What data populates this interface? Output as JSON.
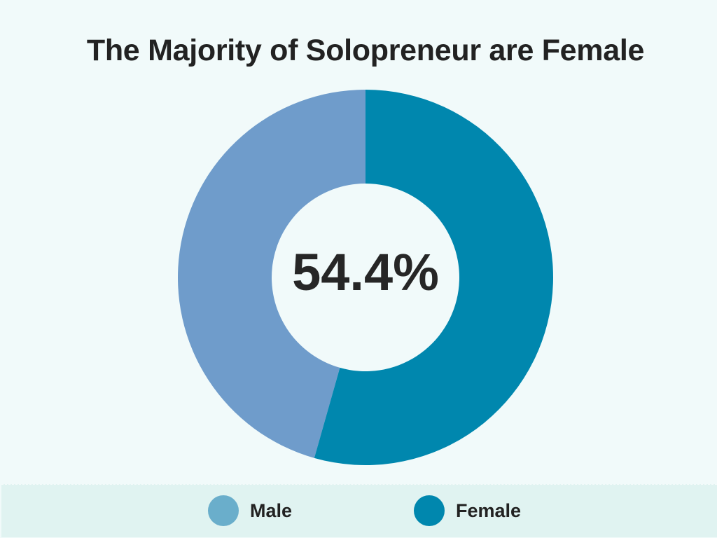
{
  "title": "The Majority of Solopreneur are Female",
  "center_label": "54.4%",
  "legend": [
    {
      "label": "Male",
      "color": "#6aaecb"
    },
    {
      "label": "Female",
      "color": "#0087ae"
    }
  ],
  "colors": {
    "background": "#f1fafa",
    "legend_band": "#e0f3f1",
    "male_slice": "#6f9ccb",
    "female_slice": "#0087ae",
    "text": "#222222"
  },
  "chart_data": {
    "type": "pie",
    "subtype": "donut",
    "title": "The Majority of Solopreneur are Female",
    "categories": [
      "Female",
      "Male"
    ],
    "values": [
      54.4,
      45.6
    ],
    "unit": "%",
    "center_annotation": "54.4%",
    "legend_position": "bottom",
    "start_angle_deg": 0,
    "direction": "clockwise"
  }
}
